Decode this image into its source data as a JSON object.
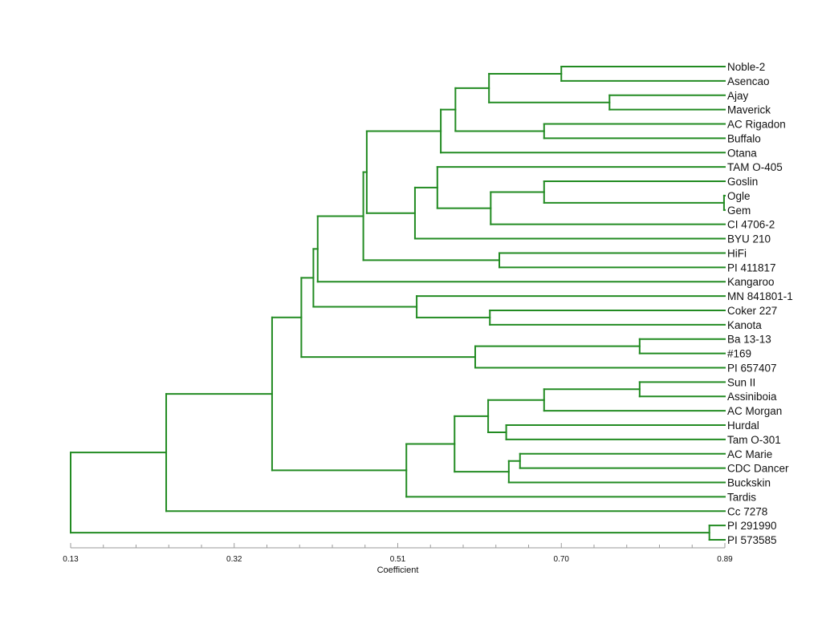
{
  "dendrogram": {
    "branch_color": "#228b22",
    "axis_color": "#9a9a9a",
    "axis": {
      "title": "Coefficient",
      "min": 0.13,
      "max": 0.89,
      "ticks": [
        "0.13",
        "0.32",
        "0.51",
        "0.70",
        "0.89"
      ],
      "minor_step": 0.038
    },
    "leaves": [
      "Noble-2",
      "Asencao",
      "Ajay",
      "Maverick",
      "AC Rigadon",
      "Buffalo",
      "Otana",
      "TAM O-405",
      "Goslin",
      "Ogle",
      "Gem",
      "CI 4706-2",
      "BYU 210",
      "HiFi",
      "PI 411817",
      "Kangaroo",
      "MN 841801-1",
      "Coker 227",
      "Kanota",
      "Ba 13-13",
      "#169",
      "PI 657407",
      "Sun II",
      "Assiniboia",
      "AC Morgan",
      "Hurdal",
      "Tam O-301",
      "AC Marie",
      "CDC Dancer",
      "Buckskin",
      "Tardis",
      "Cc 7278",
      "PI 291990",
      "PI 573585"
    ],
    "merges": [
      [
        0,
        1,
        0.7
      ],
      [
        2,
        3,
        0.756
      ],
      [
        -1,
        -2,
        0.616
      ],
      [
        4,
        5,
        0.68
      ],
      [
        -3,
        -4,
        0.577
      ],
      [
        -5,
        6,
        0.56
      ],
      [
        9,
        10,
        0.889
      ],
      [
        8,
        -7,
        0.68
      ],
      [
        -8,
        11,
        0.618
      ],
      [
        7,
        -9,
        0.556
      ],
      [
        -10,
        12,
        0.53
      ],
      [
        -6,
        -11,
        0.474
      ],
      [
        13,
        14,
        0.628
      ],
      [
        -12,
        -13,
        0.47
      ],
      [
        -14,
        15,
        0.417
      ],
      [
        17,
        18,
        0.617
      ],
      [
        16,
        -16,
        0.532
      ],
      [
        -15,
        -17,
        0.412
      ],
      [
        19,
        20,
        0.791
      ],
      [
        -19,
        21,
        0.6
      ],
      [
        -18,
        -20,
        0.398
      ],
      [
        22,
        23,
        0.791
      ],
      [
        -22,
        24,
        0.68
      ],
      [
        25,
        26,
        0.636
      ],
      [
        -23,
        -24,
        0.615
      ],
      [
        27,
        28,
        0.652
      ],
      [
        -26,
        29,
        0.639
      ],
      [
        -25,
        -27,
        0.576
      ],
      [
        -28,
        30,
        0.52
      ],
      [
        -21,
        -29,
        0.364
      ],
      [
        -30,
        31,
        0.241
      ],
      [
        32,
        33,
        0.872
      ],
      [
        -31,
        -32,
        0.13
      ]
    ]
  }
}
